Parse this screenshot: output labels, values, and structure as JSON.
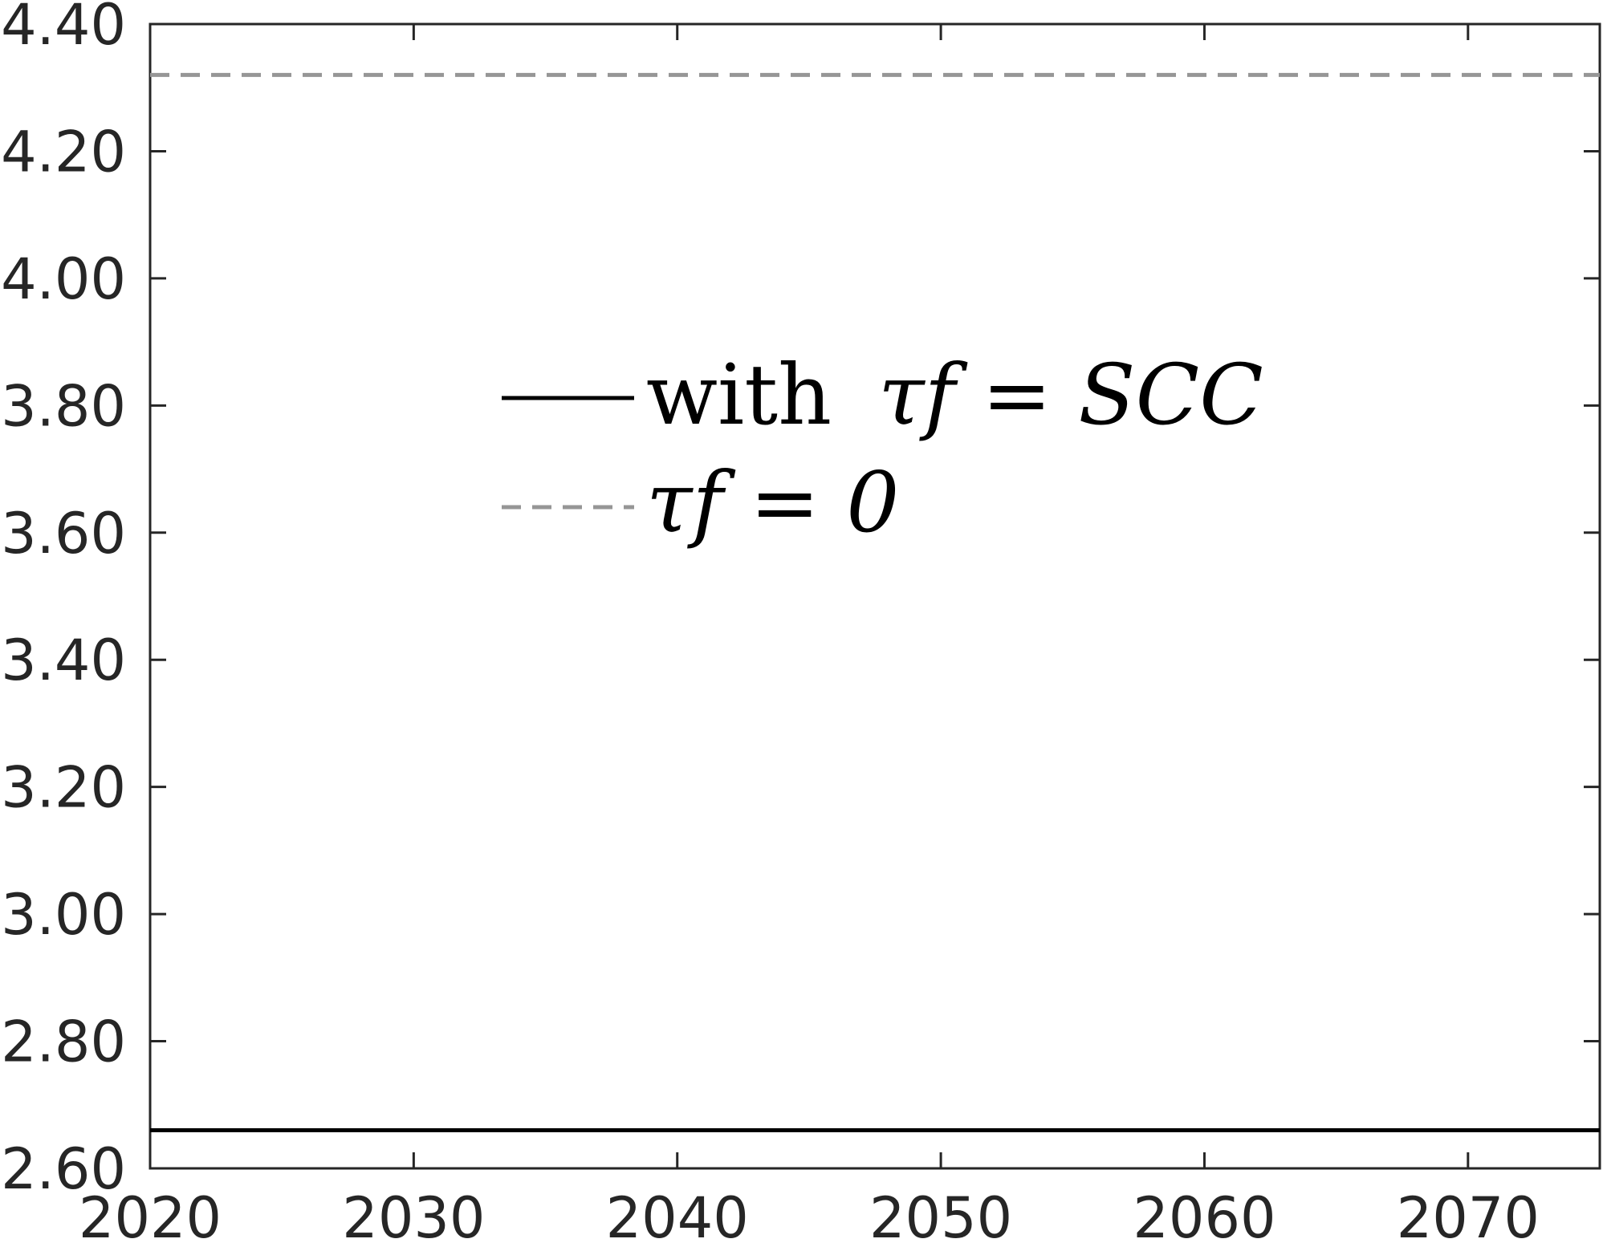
{
  "chart_data": {
    "type": "line",
    "title": "",
    "xlabel": "",
    "ylabel": "",
    "xlim": [
      2020,
      2075
    ],
    "ylim": [
      2.6,
      4.4
    ],
    "x_ticks": [
      "2020",
      "2030",
      "2040",
      "2050",
      "2060",
      "2070"
    ],
    "y_ticks": [
      "2.60",
      "2.80",
      "3.00",
      "3.20",
      "3.40",
      "3.60",
      "3.80",
      "4.00",
      "4.20",
      "4.40"
    ],
    "grid": false,
    "legend_position": "center-left",
    "series": [
      {
        "name": "with τf = SCC",
        "legend_word": "with",
        "legend_math": "τf = SCC",
        "style": "solid",
        "color": "#000000",
        "x": [
          2020,
          2075
        ],
        "y": [
          2.66,
          2.66
        ]
      },
      {
        "name": "τf = 0",
        "legend_word": "",
        "legend_math": "τf = 0",
        "style": "dashed",
        "color": "#969696",
        "x": [
          2020,
          2075
        ],
        "y": [
          4.32,
          4.32
        ]
      }
    ]
  }
}
